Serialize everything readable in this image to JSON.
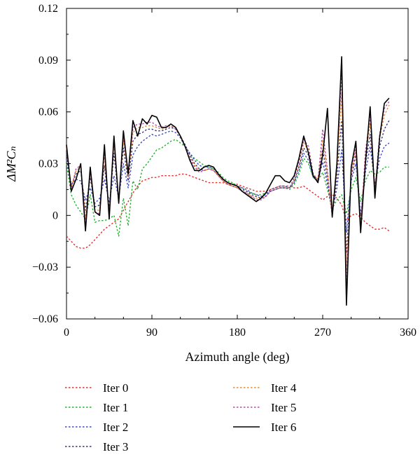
{
  "chart_data": {
    "type": "line",
    "xlabel": "Azimuth angle (deg)",
    "ylabel": "ΔM²Cₙ",
    "xlim": [
      0,
      360
    ],
    "ylim": [
      -0.06,
      0.12
    ],
    "xticks": [
      "0",
      "90",
      "180",
      "270",
      "360"
    ],
    "yticks": [
      "−0.06",
      "−0.03",
      "0",
      "0.03",
      "0.06",
      "0.09",
      "0.12"
    ],
    "grid": false,
    "legend_position": "bottom",
    "x": [
      0,
      5,
      10,
      15,
      20,
      25,
      30,
      35,
      40,
      45,
      50,
      55,
      60,
      65,
      70,
      75,
      80,
      85,
      90,
      95,
      100,
      105,
      110,
      115,
      120,
      125,
      130,
      135,
      140,
      145,
      150,
      155,
      160,
      165,
      170,
      175,
      180,
      185,
      190,
      195,
      200,
      205,
      210,
      215,
      220,
      225,
      230,
      235,
      240,
      245,
      250,
      255,
      260,
      265,
      270,
      275,
      280,
      285,
      290,
      295,
      300,
      305,
      310,
      315,
      320,
      325,
      330,
      335,
      340
    ],
    "series": [
      {
        "name": "Iter 0",
        "color": "#e0312f",
        "style": "dotted",
        "values": [
          -0.012,
          -0.015,
          -0.018,
          -0.019,
          -0.019,
          -0.017,
          -0.014,
          -0.011,
          -0.008,
          -0.006,
          -0.004,
          -0.002,
          0.003,
          0.008,
          0.013,
          0.017,
          0.02,
          0.021,
          0.022,
          0.022,
          0.023,
          0.023,
          0.023,
          0.023,
          0.024,
          0.024,
          0.023,
          0.022,
          0.021,
          0.02,
          0.019,
          0.019,
          0.019,
          0.019,
          0.018,
          0.018,
          0.018,
          0.017,
          0.016,
          0.015,
          0.014,
          0.014,
          0.014,
          0.015,
          0.016,
          0.017,
          0.017,
          0.017,
          0.016,
          0.016,
          0.017,
          0.015,
          0.013,
          0.011,
          0.009,
          0.011,
          0.012,
          0.01,
          0.006,
          -0.003,
          0.0,
          0.001,
          -0.001,
          -0.004,
          -0.006,
          -0.008,
          -0.008,
          -0.007,
          -0.009
        ]
      },
      {
        "name": "Iter 1",
        "color": "#22b32e",
        "style": "dotted",
        "values": [
          0.03,
          0.012,
          0.006,
          0.002,
          -0.002,
          0.012,
          -0.004,
          -0.003,
          -0.003,
          -0.002,
          0.0,
          -0.012,
          0.01,
          -0.006,
          0.02,
          0.015,
          0.027,
          0.03,
          0.034,
          0.038,
          0.039,
          0.041,
          0.043,
          0.044,
          0.042,
          0.04,
          0.036,
          0.033,
          0.031,
          0.029,
          0.028,
          0.027,
          0.025,
          0.022,
          0.02,
          0.019,
          0.017,
          0.016,
          0.014,
          0.013,
          0.012,
          0.012,
          0.013,
          0.014,
          0.015,
          0.016,
          0.016,
          0.015,
          0.018,
          0.024,
          0.033,
          0.03,
          0.022,
          0.02,
          0.025,
          0.015,
          0.004,
          0.009,
          0.012,
          0.001,
          0.015,
          0.022,
          0.008,
          0.02,
          0.026,
          0.024,
          0.025,
          0.028,
          0.028
        ]
      },
      {
        "name": "Iter 2",
        "color": "#3b49c6",
        "style": "dotted",
        "values": [
          0.032,
          0.018,
          0.021,
          0.02,
          0.009,
          0.016,
          0.007,
          0.01,
          0.021,
          0.008,
          0.023,
          0.01,
          0.03,
          0.016,
          0.035,
          0.04,
          0.043,
          0.045,
          0.047,
          0.046,
          0.047,
          0.048,
          0.049,
          0.048,
          0.045,
          0.04,
          0.036,
          0.032,
          0.029,
          0.028,
          0.028,
          0.027,
          0.024,
          0.021,
          0.019,
          0.018,
          0.017,
          0.016,
          0.015,
          0.013,
          0.012,
          0.011,
          0.012,
          0.015,
          0.016,
          0.017,
          0.017,
          0.016,
          0.019,
          0.026,
          0.036,
          0.032,
          0.022,
          0.02,
          0.031,
          0.018,
          0.002,
          0.016,
          0.038,
          -0.01,
          0.02,
          0.03,
          0.0,
          0.025,
          0.04,
          0.018,
          0.033,
          0.04,
          0.042
        ]
      },
      {
        "name": "Iter 3",
        "color": "#38386e",
        "style": "dotted",
        "values": [
          0.036,
          0.017,
          0.024,
          0.026,
          0.003,
          0.022,
          0.005,
          0.006,
          0.029,
          0.004,
          0.036,
          0.009,
          0.039,
          0.02,
          0.043,
          0.047,
          0.048,
          0.05,
          0.05,
          0.049,
          0.049,
          0.05,
          0.051,
          0.05,
          0.046,
          0.041,
          0.035,
          0.03,
          0.027,
          0.026,
          0.027,
          0.026,
          0.023,
          0.02,
          0.018,
          0.017,
          0.016,
          0.015,
          0.014,
          0.012,
          0.011,
          0.01,
          0.011,
          0.014,
          0.015,
          0.016,
          0.016,
          0.016,
          0.02,
          0.028,
          0.039,
          0.035,
          0.023,
          0.021,
          0.038,
          0.021,
          0.0,
          0.022,
          0.055,
          -0.022,
          0.022,
          0.035,
          -0.004,
          0.03,
          0.047,
          0.016,
          0.04,
          0.05,
          0.055
        ]
      },
      {
        "name": "Iter 4",
        "color": "#f08a24",
        "style": "dotted",
        "values": [
          0.039,
          0.016,
          0.026,
          0.028,
          -0.002,
          0.025,
          0.003,
          0.003,
          0.034,
          0.001,
          0.042,
          0.008,
          0.044,
          0.022,
          0.048,
          0.051,
          0.051,
          0.052,
          0.052,
          0.051,
          0.05,
          0.051,
          0.052,
          0.05,
          0.046,
          0.04,
          0.034,
          0.029,
          0.026,
          0.026,
          0.027,
          0.026,
          0.023,
          0.02,
          0.018,
          0.017,
          0.016,
          0.014,
          0.013,
          0.011,
          0.01,
          0.01,
          0.011,
          0.014,
          0.015,
          0.016,
          0.016,
          0.016,
          0.021,
          0.03,
          0.042,
          0.038,
          0.024,
          0.021,
          0.044,
          0.024,
          0.0,
          0.027,
          0.07,
          -0.032,
          0.024,
          0.038,
          -0.007,
          0.034,
          0.053,
          0.015,
          0.045,
          0.058,
          0.064
        ]
      },
      {
        "name": "Iter 5",
        "color": "#b04da8",
        "style": "dotted",
        "values": [
          0.04,
          0.015,
          0.027,
          0.029,
          -0.005,
          0.026,
          0.002,
          0.001,
          0.038,
          0.0,
          0.044,
          0.008,
          0.046,
          0.023,
          0.051,
          0.053,
          0.053,
          0.054,
          0.054,
          0.052,
          0.051,
          0.052,
          0.052,
          0.05,
          0.046,
          0.04,
          0.033,
          0.028,
          0.025,
          0.026,
          0.027,
          0.026,
          0.023,
          0.02,
          0.018,
          0.017,
          0.016,
          0.014,
          0.013,
          0.011,
          0.009,
          0.009,
          0.011,
          0.014,
          0.015,
          0.016,
          0.016,
          0.016,
          0.022,
          0.031,
          0.044,
          0.04,
          0.024,
          0.02,
          0.05,
          0.026,
          -0.001,
          0.03,
          0.082,
          -0.04,
          0.025,
          0.04,
          -0.008,
          0.037,
          0.057,
          0.013,
          0.047,
          0.062,
          0.066
        ]
      },
      {
        "name": "Iter 6",
        "color": "#000000",
        "style": "solid",
        "values": [
          0.041,
          0.014,
          0.021,
          0.03,
          -0.009,
          0.028,
          0.002,
          0.0,
          0.041,
          -0.002,
          0.046,
          0.007,
          0.049,
          0.024,
          0.055,
          0.046,
          0.056,
          0.053,
          0.058,
          0.057,
          0.051,
          0.051,
          0.053,
          0.051,
          0.046,
          0.04,
          0.032,
          0.026,
          0.026,
          0.028,
          0.029,
          0.028,
          0.024,
          0.021,
          0.019,
          0.018,
          0.017,
          0.014,
          0.012,
          0.01,
          0.008,
          0.01,
          0.013,
          0.018,
          0.023,
          0.023,
          0.02,
          0.019,
          0.023,
          0.033,
          0.046,
          0.036,
          0.023,
          0.019,
          0.035,
          0.062,
          -0.001,
          0.03,
          0.092,
          -0.052,
          0.028,
          0.043,
          -0.01,
          0.03,
          0.063,
          0.01,
          0.045,
          0.065,
          0.068
        ]
      }
    ]
  }
}
